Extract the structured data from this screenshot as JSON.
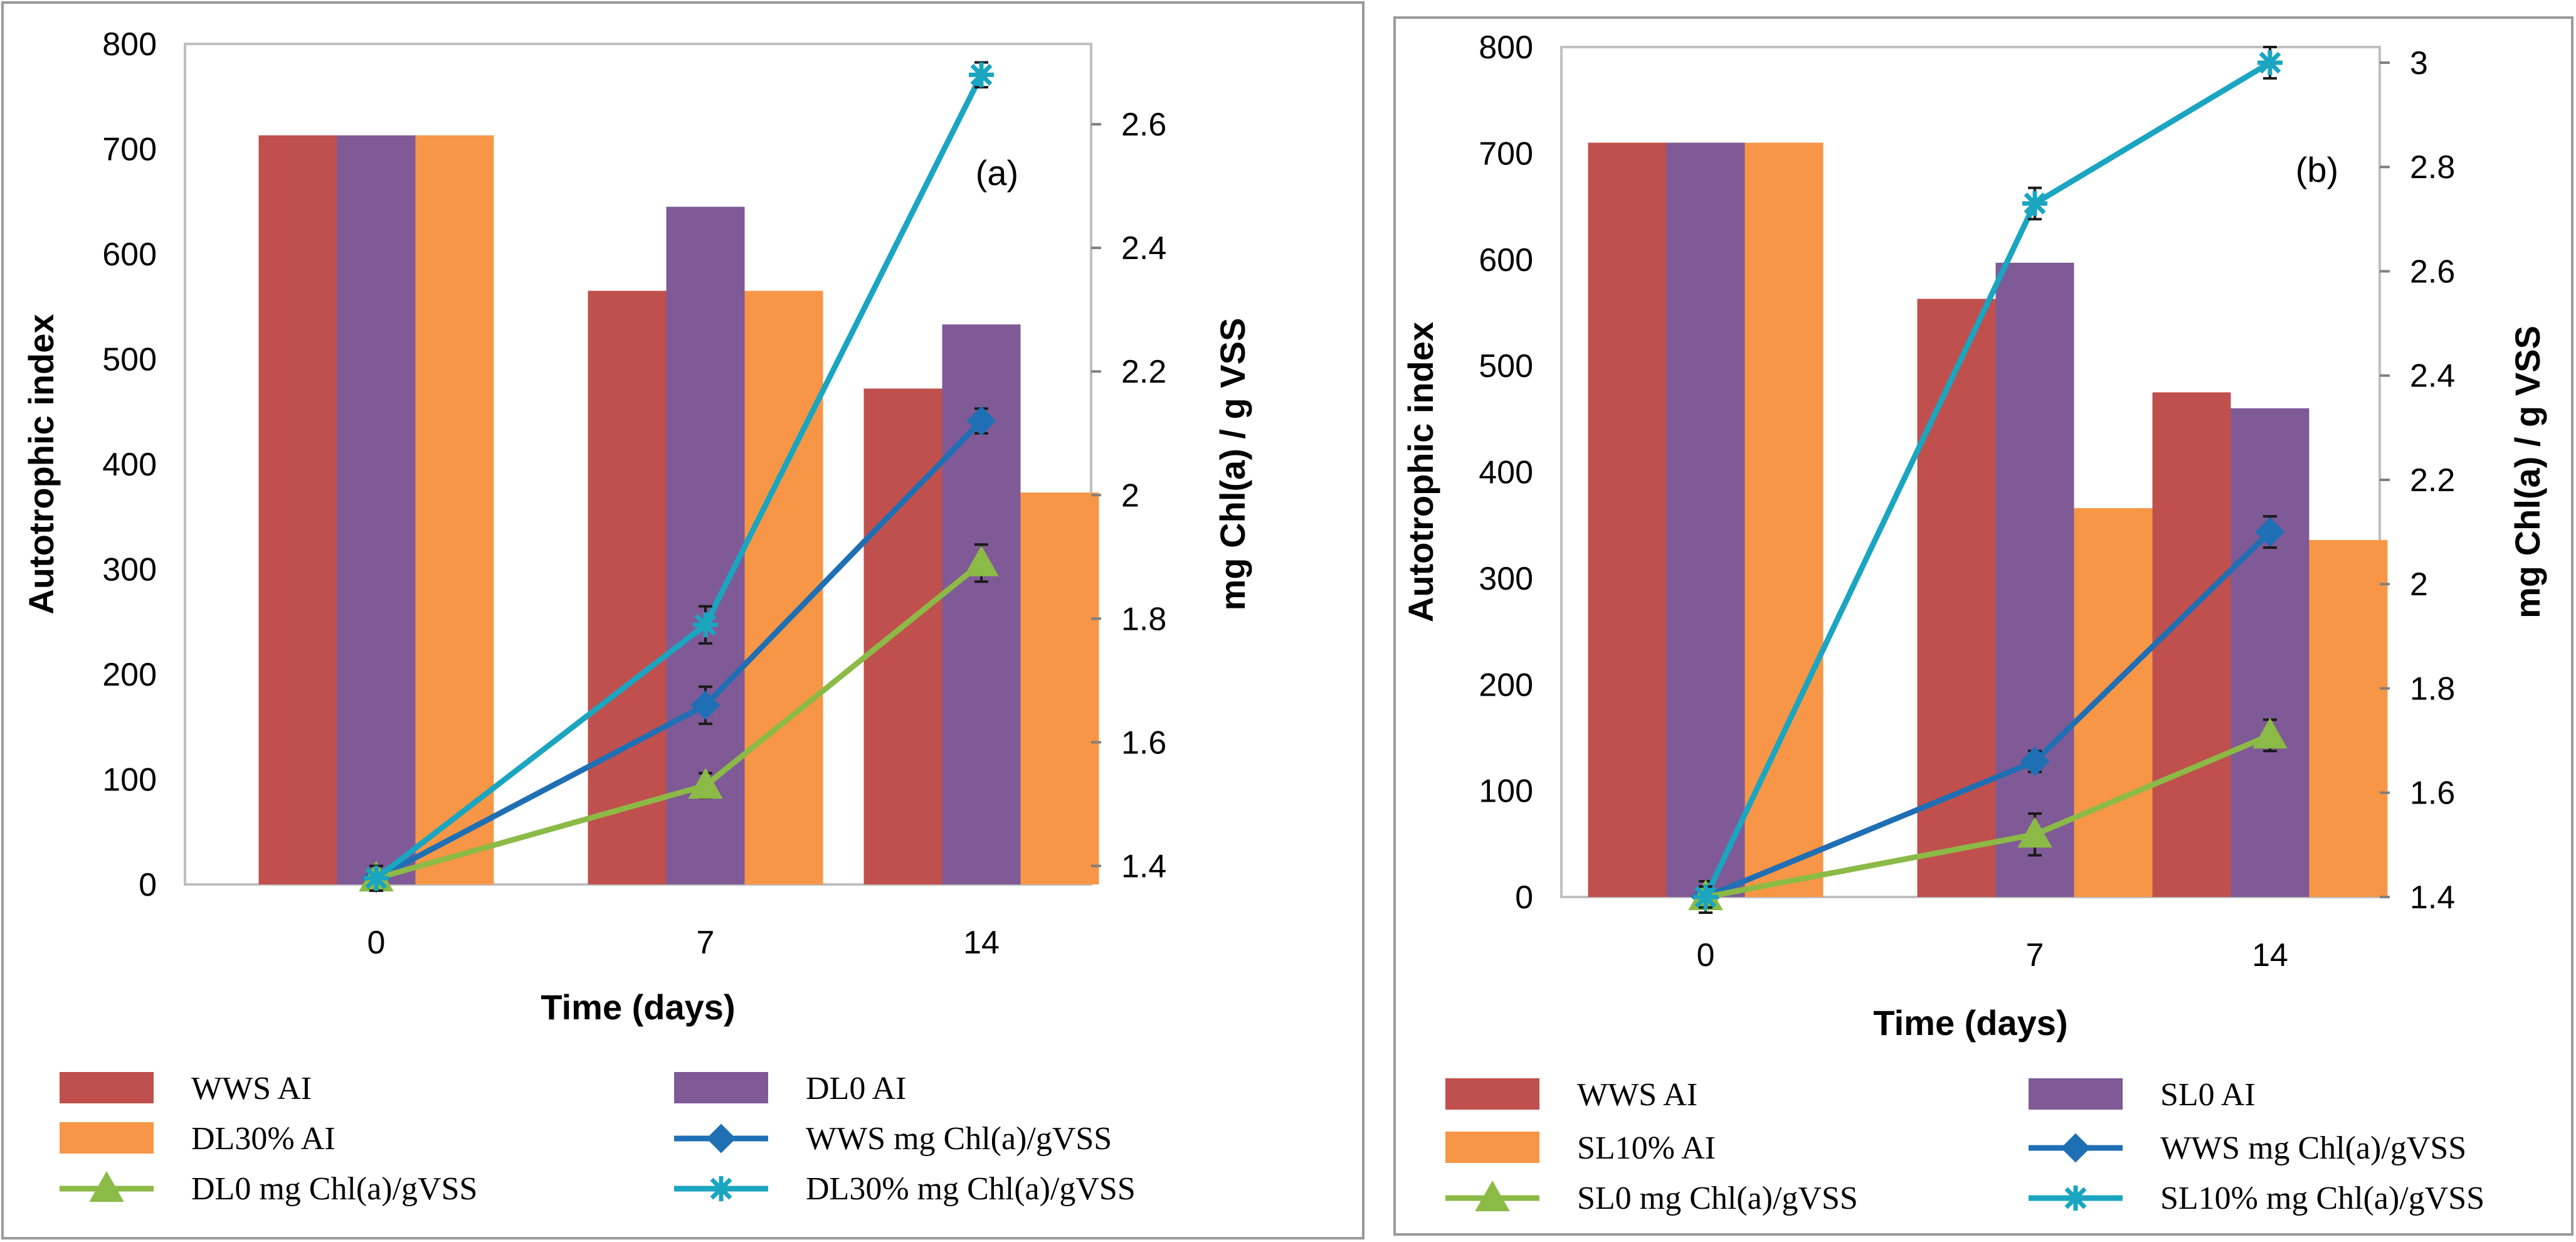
{
  "chart_data": [
    {
      "type": "bar",
      "panel_label": "(a)",
      "categories": [
        "0",
        "7",
        "14"
      ],
      "xlabel": "Time (days)",
      "ylabel": "Autotrophic index",
      "y2label": "mg Chl(a) / g VSS",
      "ylim": [
        0,
        800
      ],
      "yticks": [
        "0",
        "100",
        "200",
        "300",
        "400",
        "500",
        "600",
        "700",
        "800"
      ],
      "y2lim": [
        1.37,
        2.73
      ],
      "y2ticks": [
        "1.4",
        "1.6",
        "1.8",
        "2",
        "2.2",
        "2.4",
        "2.6"
      ],
      "grid": false,
      "legend_position": "bottom",
      "bar_series": [
        {
          "name": "WWS   AI",
          "color": "#c0504d",
          "values": [
            713,
            565,
            472
          ]
        },
        {
          "name": "DL0   AI",
          "color": "#7f5a96",
          "values": [
            713,
            645,
            533
          ]
        },
        {
          "name": "DL30%   AI",
          "color": "#f79646",
          "values": [
            713,
            565,
            373
          ]
        }
      ],
      "line_series": [
        {
          "name": "WWS mg Chl(a)/gVSS",
          "color": "#1f6fb4",
          "marker": "diamond",
          "values": [
            1.38,
            1.66,
            2.12
          ],
          "errors": [
            0.02,
            0.03,
            0.02
          ]
        },
        {
          "name": "DL0 mg Chl(a)/gVSS",
          "color": "#8cba46",
          "marker": "triangle",
          "values": [
            1.38,
            1.53,
            1.89
          ],
          "errors": [
            0.02,
            0.02,
            0.03
          ]
        },
        {
          "name": "DL30%  mg Chl(a)/gVSS",
          "color": "#1aa5c0",
          "marker": "asterisk",
          "values": [
            1.38,
            1.79,
            2.68
          ],
          "errors": [
            0.02,
            0.03,
            0.02
          ]
        }
      ]
    },
    {
      "type": "bar",
      "panel_label": "(b)",
      "categories": [
        "0",
        "7",
        "14"
      ],
      "xlabel": "Time (days)",
      "ylabel": "Autotrophic index",
      "y2label": "mg Chl(a) / g VSS",
      "ylim": [
        0,
        800
      ],
      "yticks": [
        "0",
        "100",
        "200",
        "300",
        "400",
        "500",
        "600",
        "700",
        "800"
      ],
      "y2lim": [
        1.4,
        3.03
      ],
      "y2ticks": [
        "1.4",
        "1.6",
        "1.8",
        "2",
        "2.2",
        "2.4",
        "2.6",
        "2.8",
        "3"
      ],
      "grid": false,
      "legend_position": "bottom",
      "bar_series": [
        {
          "name": "WWS   AI",
          "color": "#c0504d",
          "values": [
            710,
            563,
            475
          ]
        },
        {
          "name": "SL0   AI",
          "color": "#7f5a96",
          "values": [
            710,
            597,
            460
          ]
        },
        {
          "name": "SL10%   AI",
          "color": "#f79646",
          "values": [
            710,
            366,
            336
          ]
        }
      ],
      "line_series": [
        {
          "name": "WWS mg Chl(a)/gVSS",
          "color": "#1f6fb4",
          "marker": "diamond",
          "values": [
            1.4,
            1.66,
            2.1
          ],
          "errors": [
            0.03,
            0.02,
            0.03
          ]
        },
        {
          "name": "SL0 mg Chl(a)/gVSS",
          "color": "#8cba46",
          "marker": "triangle",
          "values": [
            1.4,
            1.52,
            1.71
          ],
          "errors": [
            0.02,
            0.04,
            0.03
          ]
        },
        {
          "name": "SL10%  mg Chl(a)/gVSS",
          "color": "#1aa5c0",
          "marker": "asterisk",
          "values": [
            1.4,
            2.73,
            3.0
          ],
          "errors": [
            0.02,
            0.03,
            0.03
          ]
        }
      ]
    }
  ]
}
